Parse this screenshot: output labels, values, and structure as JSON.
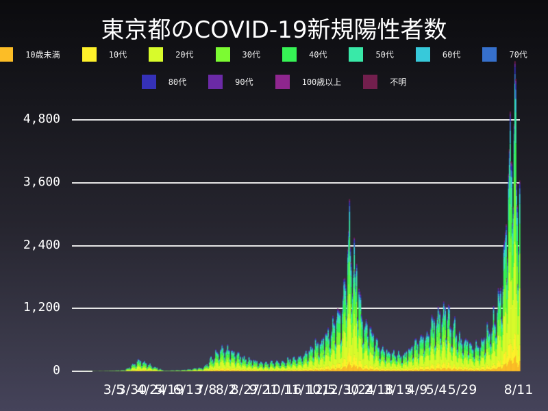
{
  "title": "東京都のCOVID-19新規陽性者数",
  "legend": [
    {
      "label": "10歳未満",
      "color": "#fcbd26"
    },
    {
      "label": "10代",
      "color": "#fef12a"
    },
    {
      "label": "20代",
      "color": "#d8fb2b"
    },
    {
      "label": "30代",
      "color": "#7cfb32"
    },
    {
      "label": "40代",
      "color": "#36f355"
    },
    {
      "label": "50代",
      "color": "#39e9a8"
    },
    {
      "label": "60代",
      "color": "#37c9da"
    },
    {
      "label": "70代",
      "color": "#3670cc"
    },
    {
      "label": "80代",
      "color": "#3531b8"
    },
    {
      "label": "90代",
      "color": "#6b2aa6"
    },
    {
      "label": "100歳以上",
      "color": "#8e268e"
    },
    {
      "label": "不明",
      "color": "#721f4d"
    }
  ],
  "chart_data": {
    "type": "bar",
    "stacked": true,
    "title": "東京都のCOVID-19新規陽性者数",
    "xlabel": "",
    "ylabel": "",
    "ylim": [
      0,
      5000
    ],
    "yticks": [
      0,
      1200,
      2400,
      3600,
      4800
    ],
    "ytick_labels": [
      "0",
      "1,200",
      "2,400",
      "3,600",
      "4,800"
    ],
    "grid": true,
    "legend_position": "top",
    "x_tick_labels": [
      "3/5",
      "3/30",
      "4/24",
      "5/19",
      "6/13",
      "7/8",
      "8/2",
      "8/27",
      "9/21",
      "10/16",
      "11/10",
      "12/5",
      "12/30",
      "1/24",
      "2/18",
      "3/15",
      "4/9",
      "5/4",
      "5/29",
      "8/11"
    ],
    "series": [
      "10歳未満",
      "10代",
      "20代",
      "30代",
      "40代",
      "50代",
      "60代",
      "70代",
      "80代",
      "90代",
      "100歳以上",
      "不明"
    ],
    "total_profile_daily_approx": [
      {
        "date": "2020-01-24",
        "total": 0
      },
      {
        "date": "2020-03-05",
        "total": 5
      },
      {
        "date": "2020-03-30",
        "total": 20
      },
      {
        "date": "2020-04-17",
        "total": 200
      },
      {
        "date": "2020-04-24",
        "total": 160
      },
      {
        "date": "2020-05-19",
        "total": 10
      },
      {
        "date": "2020-06-13",
        "total": 25
      },
      {
        "date": "2020-07-08",
        "total": 75
      },
      {
        "date": "2020-08-01",
        "total": 460
      },
      {
        "date": "2020-08-27",
        "total": 250
      },
      {
        "date": "2020-09-21",
        "total": 150
      },
      {
        "date": "2020-10-16",
        "total": 180
      },
      {
        "date": "2020-11-10",
        "total": 300
      },
      {
        "date": "2020-12-05",
        "total": 580
      },
      {
        "date": "2020-12-30",
        "total": 1100
      },
      {
        "date": "2021-01-07",
        "total": 2520
      },
      {
        "date": "2021-01-15",
        "total": 2000
      },
      {
        "date": "2021-01-24",
        "total": 990
      },
      {
        "date": "2021-02-18",
        "total": 400
      },
      {
        "date": "2021-03-15",
        "total": 300
      },
      {
        "date": "2021-04-09",
        "total": 570
      },
      {
        "date": "2021-05-08",
        "total": 1120
      },
      {
        "date": "2021-05-29",
        "total": 600
      },
      {
        "date": "2021-06-20",
        "total": 450
      },
      {
        "date": "2021-07-10",
        "total": 950
      },
      {
        "date": "2021-07-22",
        "total": 1980
      },
      {
        "date": "2021-07-29",
        "total": 3860
      },
      {
        "date": "2021-08-05",
        "total": 5040
      },
      {
        "date": "2021-08-09",
        "total": 2880
      },
      {
        "date": "2021-08-11",
        "total": 4200
      }
    ]
  }
}
